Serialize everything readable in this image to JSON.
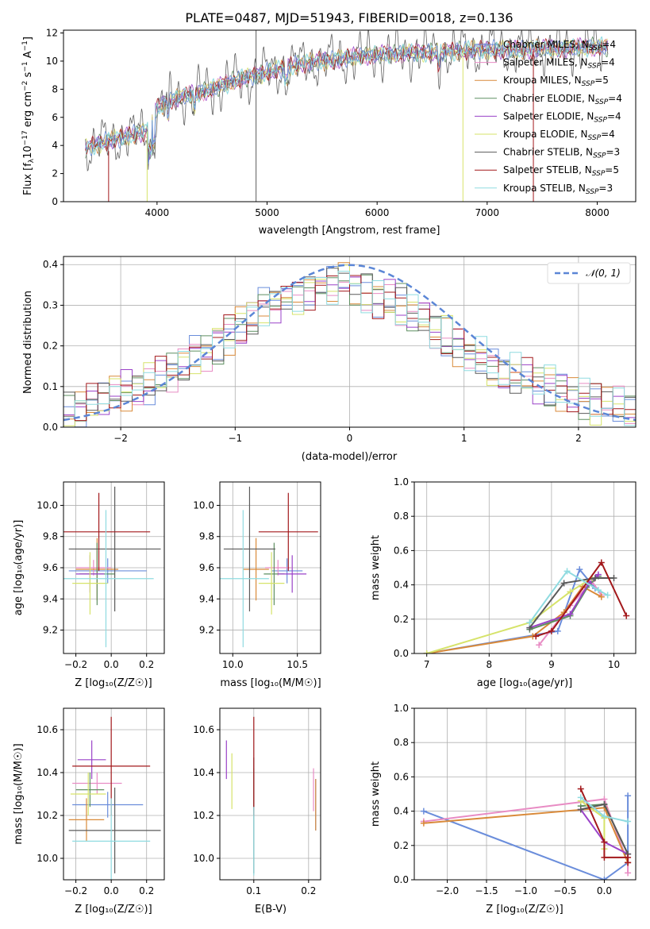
{
  "title": "PLATE=0487, MJD=51943, FIBERID=0018, z=0.136",
  "colors": {
    "chabrier_miles": "#6a8ddb",
    "salpeter_miles": "#e88cc4",
    "kroupa_miles": "#d98a3a",
    "chabrier_elodie": "#5f8f62",
    "salpeter_elodie": "#9a42c8",
    "kroupa_elodie": "#d6e36a",
    "chabrier_stelib": "#5a5a5a",
    "salpeter_stelib": "#a3191c",
    "kroupa_stelib": "#8fdbe0",
    "gaussian": "#5b86d6"
  },
  "chart_data": [
    {
      "id": "spectrum",
      "type": "line",
      "xlabel": "wavelength [Angstrom, rest frame]",
      "ylabel": "Flux [f",
      "xlim": [
        3150,
        8350
      ],
      "ylim": [
        0,
        12.2
      ],
      "xticks": [
        4000,
        5000,
        6000,
        7000,
        8000
      ],
      "yticks": [
        0,
        2,
        4,
        6,
        8,
        10,
        12
      ],
      "grid": false,
      "legend_position": "upper-right",
      "legend": [
        {
          "label": "Chabrier MILES, N",
          "sub": "SSP",
          "suffix": "=4",
          "color_key": "chabrier_miles"
        },
        {
          "label": "Salpeter MILES, N",
          "sub": "SSP",
          "suffix": "=4",
          "color_key": "salpeter_miles"
        },
        {
          "label": "Kroupa MILES, N",
          "sub": "SSP",
          "suffix": "=5",
          "color_key": "kroupa_miles"
        },
        {
          "label": "Chabrier ELODIE, N",
          "sub": "SSP",
          "suffix": "=4",
          "color_key": "chabrier_elodie"
        },
        {
          "label": "Salpeter ELODIE, N",
          "sub": "SSP",
          "suffix": "=4",
          "color_key": "salpeter_elodie"
        },
        {
          "label": "Kroupa ELODIE, N",
          "sub": "SSP",
          "suffix": "=4",
          "color_key": "kroupa_elodie"
        },
        {
          "label": "Chabrier STELIB, N",
          "sub": "SSP",
          "suffix": "=3",
          "color_key": "chabrier_stelib"
        },
        {
          "label": "Salpeter STELIB, N",
          "sub": "SSP",
          "suffix": "=5",
          "color_key": "salpeter_stelib"
        },
        {
          "label": "Kroupa STELIB, N",
          "sub": "SSP",
          "suffix": "=3",
          "color_key": "kroupa_stelib"
        }
      ],
      "continuum": {
        "x": [
          3350,
          3500,
          3700,
          3900,
          4000,
          4100,
          4300,
          4500,
          4700,
          4900,
          5100,
          5300,
          5500,
          5700,
          5900,
          6100,
          6300,
          6500,
          6700,
          6900,
          7100,
          7300,
          7500,
          7700,
          7900,
          8100
        ],
        "y": [
          3.8,
          4.2,
          4.6,
          5.0,
          6.6,
          7.2,
          7.6,
          8.0,
          8.6,
          9.0,
          9.4,
          9.8,
          10.0,
          10.2,
          10.4,
          10.5,
          10.6,
          10.6,
          10.7,
          10.8,
          10.8,
          10.8,
          10.9,
          10.9,
          11.0,
          11.0
        ]
      },
      "spikes": [
        {
          "x": 3560,
          "y0": 0,
          "y1": 3.6,
          "color_key": "salpeter_stelib"
        },
        {
          "x": 3910,
          "y0": 0,
          "y1": 5.0,
          "color_key": "kroupa_elodie"
        },
        {
          "x": 4900,
          "y0": 0,
          "y1": 12.2,
          "color_key": "chabrier_stelib"
        },
        {
          "x": 6780,
          "y0": 0,
          "y1": 10.8,
          "color_key": "kroupa_elodie"
        },
        {
          "x": 7420,
          "y0": 0,
          "y1": 10.8,
          "color_key": "salpeter_stelib"
        }
      ]
    },
    {
      "id": "residuals",
      "type": "step",
      "xlabel": "(data-model)/error",
      "ylabel": "Normed distribution",
      "xlim": [
        -2.5,
        2.5
      ],
      "ylim": [
        0,
        0.42
      ],
      "xticks": [
        -2,
        -1,
        0,
        1,
        2
      ],
      "yticks": [
        0.0,
        0.1,
        0.2,
        0.3,
        0.4
      ],
      "grid": true,
      "legend_position": "upper-right",
      "legend_label": "𝒩(0, 1)",
      "bin_edges": [
        -2.5,
        -2.4,
        -2.3,
        -2.2,
        -2.1,
        -2.0,
        -1.9,
        -1.8,
        -1.7,
        -1.6,
        -1.5,
        -1.4,
        -1.3,
        -1.2,
        -1.1,
        -1.0,
        -0.9,
        -0.8,
        -0.7,
        -0.6,
        -0.5,
        -0.4,
        -0.3,
        -0.2,
        -0.1,
        0.0,
        0.1,
        0.2,
        0.3,
        0.4,
        0.5,
        0.6,
        0.7,
        0.8,
        0.9,
        1.0,
        1.1,
        1.2,
        1.3,
        1.4,
        1.5,
        1.6,
        1.7,
        1.8,
        1.9,
        2.0,
        2.1,
        2.2,
        2.3,
        2.4,
        2.5
      ],
      "base_values": [
        0.04,
        0.05,
        0.06,
        0.07,
        0.08,
        0.09,
        0.1,
        0.11,
        0.12,
        0.14,
        0.16,
        0.18,
        0.19,
        0.21,
        0.23,
        0.25,
        0.27,
        0.29,
        0.31,
        0.32,
        0.33,
        0.34,
        0.35,
        0.35,
        0.35,
        0.34,
        0.33,
        0.32,
        0.31,
        0.3,
        0.28,
        0.26,
        0.24,
        0.22,
        0.2,
        0.18,
        0.17,
        0.15,
        0.14,
        0.13,
        0.12,
        0.11,
        0.1,
        0.09,
        0.08,
        0.07,
        0.06,
        0.06,
        0.05,
        0.04
      ],
      "series_keys": [
        "chabrier_miles",
        "salpeter_miles",
        "kroupa_miles",
        "chabrier_elodie",
        "salpeter_elodie",
        "kroupa_elodie",
        "chabrier_stelib",
        "salpeter_stelib",
        "kroupa_stelib"
      ],
      "gaussian": {
        "mu": 0,
        "sigma": 1
      }
    },
    {
      "id": "age_vs_Z",
      "type": "errorbar",
      "xlabel": "Z [log₁₀(Z/Z☉)]",
      "ylabel": "age  [log₁₀(age/yr)]",
      "xlim": [
        -0.27,
        0.3
      ],
      "ylim": [
        9.05,
        10.15
      ],
      "xticks": [
        -0.2,
        0.0,
        0.2
      ],
      "xticklabels": [
        "−0.2",
        "0.0",
        "0.2"
      ],
      "yticks": [
        9.2,
        9.4,
        9.6,
        9.8,
        10.0
      ],
      "grid": true,
      "points": [
        {
          "color_key": "chabrier_miles",
          "x": -0.02,
          "xerr": 0.22,
          "y": 9.58,
          "yerr": 0.08
        },
        {
          "color_key": "salpeter_miles",
          "x": -0.1,
          "xerr": 0.1,
          "y": 9.6,
          "yerr": 0.05
        },
        {
          "color_key": "kroupa_miles",
          "x": -0.08,
          "xerr": 0.12,
          "y": 9.59,
          "yerr": 0.2
        },
        {
          "color_key": "chabrier_elodie",
          "x": -0.08,
          "xerr": 0.1,
          "y": 9.56,
          "yerr": 0.2
        },
        {
          "color_key": "salpeter_elodie",
          "x": -0.12,
          "xerr": 0.08,
          "y": 9.56,
          "yerr": 0.12
        },
        {
          "color_key": "kroupa_elodie",
          "x": -0.12,
          "xerr": 0.1,
          "y": 9.5,
          "yerr": 0.2
        },
        {
          "color_key": "chabrier_stelib",
          "x": 0.02,
          "xerr": 0.26,
          "y": 9.72,
          "yerr": 0.4
        },
        {
          "color_key": "salpeter_stelib",
          "x": -0.07,
          "xerr": 0.29,
          "y": 9.83,
          "yerr": 0.25
        },
        {
          "color_key": "kroupa_stelib",
          "x": -0.03,
          "xerr": 0.27,
          "y": 9.53,
          "yerr": 0.44
        }
      ]
    },
    {
      "id": "age_vs_mass",
      "type": "errorbar",
      "xlabel": "mass [log₁₀(M/M☉)]",
      "ylabel": "",
      "xlim": [
        9.9,
        10.68
      ],
      "ylim": [
        9.05,
        10.15
      ],
      "xticks": [
        10.0,
        10.5
      ],
      "xticklabels": [
        "10.0",
        "10.5"
      ],
      "yticks": [
        9.2,
        9.4,
        9.6,
        9.8,
        10.0
      ],
      "grid": true,
      "points": [
        {
          "color_key": "chabrier_miles",
          "x": 10.42,
          "xerr": 0.12,
          "y": 9.58,
          "yerr": 0.08
        },
        {
          "color_key": "salpeter_miles",
          "x": 10.35,
          "xerr": 0.1,
          "y": 9.6,
          "yerr": 0.05
        },
        {
          "color_key": "kroupa_miles",
          "x": 10.18,
          "xerr": 0.1,
          "y": 9.59,
          "yerr": 0.2
        },
        {
          "color_key": "chabrier_elodie",
          "x": 10.32,
          "xerr": 0.08,
          "y": 9.56,
          "yerr": 0.2
        },
        {
          "color_key": "salpeter_elodie",
          "x": 10.46,
          "xerr": 0.11,
          "y": 9.56,
          "yerr": 0.12
        },
        {
          "color_key": "kroupa_elodie",
          "x": 10.3,
          "xerr": 0.1,
          "y": 9.5,
          "yerr": 0.2
        },
        {
          "color_key": "chabrier_stelib",
          "x": 10.13,
          "xerr": 0.2,
          "y": 9.72,
          "yerr": 0.4
        },
        {
          "color_key": "salpeter_stelib",
          "x": 10.43,
          "xerr": 0.23,
          "y": 9.83,
          "yerr": 0.25
        },
        {
          "color_key": "kroupa_stelib",
          "x": 10.08,
          "xerr": 0.2,
          "y": 9.53,
          "yerr": 0.44
        }
      ]
    },
    {
      "id": "weight_vs_age",
      "type": "line",
      "xlabel": "age  [log₁₀(age/yr)]",
      "ylabel": "mass weight",
      "xlim": [
        6.8,
        10.35
      ],
      "ylim": [
        0,
        1.0
      ],
      "xticks": [
        7,
        8,
        9,
        10
      ],
      "yticks": [
        0.0,
        0.2,
        0.4,
        0.6,
        0.8,
        1.0
      ],
      "grid": true,
      "series": [
        {
          "color_key": "chabrier_miles",
          "x": [
            7.0,
            9.1,
            9.45,
            9.7
          ],
          "y": [
            0.0,
            0.13,
            0.49,
            0.38
          ]
        },
        {
          "color_key": "salpeter_miles",
          "x": [
            8.8,
            9.3,
            9.65,
            9.8
          ],
          "y": [
            0.05,
            0.28,
            0.42,
            0.34
          ]
        },
        {
          "color_key": "kroupa_miles",
          "x": [
            7.0,
            8.7,
            9.2,
            9.5,
            9.8
          ],
          "y": [
            0.0,
            0.1,
            0.24,
            0.39,
            0.33
          ]
        },
        {
          "color_key": "chabrier_elodie",
          "x": [
            8.65,
            9.3,
            9.6,
            9.75
          ],
          "y": [
            0.14,
            0.22,
            0.4,
            0.45
          ]
        },
        {
          "color_key": "salpeter_elodie",
          "x": [
            8.65,
            9.3,
            9.6,
            9.75
          ],
          "y": [
            0.15,
            0.23,
            0.41,
            0.46
          ]
        },
        {
          "color_key": "kroupa_elodie",
          "x": [
            7.0,
            8.65,
            9.3,
            9.65
          ],
          "y": [
            0.0,
            0.18,
            0.36,
            0.44
          ]
        },
        {
          "color_key": "chabrier_stelib",
          "x": [
            8.65,
            9.2,
            9.7,
            10.0
          ],
          "y": [
            0.15,
            0.41,
            0.44,
            0.44
          ]
        },
        {
          "color_key": "salpeter_stelib",
          "x": [
            8.75,
            9.0,
            9.8,
            10.2
          ],
          "y": [
            0.1,
            0.13,
            0.53,
            0.22
          ]
        },
        {
          "color_key": "kroupa_stelib",
          "x": [
            8.65,
            9.25,
            9.75,
            9.9
          ],
          "y": [
            0.18,
            0.48,
            0.37,
            0.34
          ]
        }
      ]
    },
    {
      "id": "mass_vs_Z",
      "type": "errorbar",
      "xlabel": "Z [log₁₀(Z/Z☉)]",
      "ylabel": "mass [log₁₀(M/M☉)]",
      "xlim": [
        -0.27,
        0.3
      ],
      "ylim": [
        9.9,
        10.7
      ],
      "xticks": [
        -0.2,
        0.0,
        0.2
      ],
      "xticklabels": [
        "−0.2",
        "0.0",
        "0.2"
      ],
      "yticks": [
        10.0,
        10.2,
        10.4,
        10.6
      ],
      "grid": true,
      "points": [
        {
          "color_key": "chabrier_miles",
          "x": -0.02,
          "xerr": 0.2,
          "y": 10.25,
          "yerr": 0.06
        },
        {
          "color_key": "salpeter_miles",
          "x": -0.08,
          "xerr": 0.14,
          "y": 10.35,
          "yerr": 0.05
        },
        {
          "color_key": "kroupa_miles",
          "x": -0.14,
          "xerr": 0.1,
          "y": 10.18,
          "yerr": 0.1
        },
        {
          "color_key": "chabrier_elodie",
          "x": -0.12,
          "xerr": 0.08,
          "y": 10.32,
          "yerr": 0.08
        },
        {
          "color_key": "salpeter_elodie",
          "x": -0.11,
          "xerr": 0.08,
          "y": 10.46,
          "yerr": 0.09
        },
        {
          "color_key": "kroupa_elodie",
          "x": -0.13,
          "xerr": 0.1,
          "y": 10.3,
          "yerr": 0.1
        },
        {
          "color_key": "chabrier_stelib",
          "x": 0.02,
          "xerr": 0.26,
          "y": 10.13,
          "yerr": 0.2
        },
        {
          "color_key": "salpeter_stelib",
          "x": 0.0,
          "xerr": 0.22,
          "y": 10.43,
          "yerr": 0.23
        },
        {
          "color_key": "kroupa_stelib",
          "x": 0.0,
          "xerr": 0.22,
          "y": 10.08,
          "yerr": 0.2
        }
      ]
    },
    {
      "id": "mass_vs_ebv",
      "type": "errorbar",
      "xlabel": "E(B-V)",
      "ylabel": "",
      "xlim": [
        0.038,
        0.222
      ],
      "ylim": [
        9.9,
        10.7
      ],
      "xticks": [
        0.1,
        0.2
      ],
      "xticklabels": [
        "0.1",
        "0.2"
      ],
      "yticks": [
        10.0,
        10.2,
        10.4,
        10.6
      ],
      "grid": true,
      "points": [
        {
          "color_key": "chabrier_miles",
          "x": 0.213,
          "y": 10.25,
          "yerr": 0.12
        },
        {
          "color_key": "salpeter_miles",
          "x": 0.209,
          "y": 10.32,
          "yerr": 0.1
        },
        {
          "color_key": "kroupa_miles",
          "x": 0.213,
          "y": 10.25,
          "yerr": 0.12
        },
        {
          "color_key": "chabrier_elodie",
          "x": 0.1,
          "y": 10.32,
          "yerr": 0.1
        },
        {
          "color_key": "salpeter_elodie",
          "x": 0.05,
          "y": 10.46,
          "yerr": 0.09
        },
        {
          "color_key": "kroupa_elodie",
          "x": 0.06,
          "y": 10.36,
          "yerr": 0.13
        },
        {
          "color_key": "chabrier_stelib",
          "x": 0.1,
          "y": 10.2,
          "yerr": 0.27
        },
        {
          "color_key": "salpeter_stelib",
          "x": 0.1,
          "y": 10.43,
          "yerr": 0.23
        },
        {
          "color_key": "kroupa_stelib",
          "x": 0.1,
          "y": 10.08,
          "yerr": 0.16
        }
      ]
    },
    {
      "id": "weight_vs_Z",
      "type": "line",
      "xlabel": "Z [log₁₀(Z/Z☉)]",
      "ylabel": "mass weight",
      "xlim": [
        -2.42,
        0.4
      ],
      "ylim": [
        0,
        1.0
      ],
      "xticks": [
        -2.0,
        -1.5,
        -1.0,
        -0.5,
        0.0
      ],
      "xticklabels": [
        "−2.0",
        "−1.5",
        "−1.0",
        "−0.5",
        "0.0"
      ],
      "yticks": [
        0.0,
        0.2,
        0.4,
        0.6,
        0.8,
        1.0
      ],
      "grid": true,
      "series": [
        {
          "color_key": "chabrier_miles",
          "x": [
            -2.3,
            0.0,
            0.3,
            0.3
          ],
          "y": [
            0.4,
            0.0,
            0.1,
            0.49
          ]
        },
        {
          "color_key": "salpeter_miles",
          "x": [
            -2.3,
            0.0,
            0.3,
            0.3
          ],
          "y": [
            0.34,
            0.47,
            0.1,
            0.04
          ]
        },
        {
          "color_key": "kroupa_miles",
          "x": [
            -2.3,
            0.0,
            0.3
          ],
          "y": [
            0.33,
            0.42,
            0.1
          ]
        },
        {
          "color_key": "chabrier_elodie",
          "x": [
            -0.3,
            0.0,
            0.3
          ],
          "y": [
            0.43,
            0.44,
            0.15
          ]
        },
        {
          "color_key": "salpeter_elodie",
          "x": [
            -0.3,
            0.0,
            0.3
          ],
          "y": [
            0.41,
            0.22,
            0.15
          ]
        },
        {
          "color_key": "kroupa_elodie",
          "x": [
            -0.3,
            0.0,
            0.0
          ],
          "y": [
            0.46,
            0.36,
            0.18
          ]
        },
        {
          "color_key": "chabrier_stelib",
          "x": [
            -0.3,
            0.0,
            0.3
          ],
          "y": [
            0.41,
            0.44,
            0.15
          ]
        },
        {
          "color_key": "salpeter_stelib",
          "x": [
            -0.3,
            0.0,
            0.0,
            0.3,
            0.3
          ],
          "y": [
            0.53,
            0.22,
            0.13,
            0.13,
            0.1
          ]
        },
        {
          "color_key": "kroupa_stelib",
          "x": [
            -0.3,
            0.0,
            0.3
          ],
          "y": [
            0.48,
            0.37,
            0.34
          ]
        }
      ]
    }
  ]
}
